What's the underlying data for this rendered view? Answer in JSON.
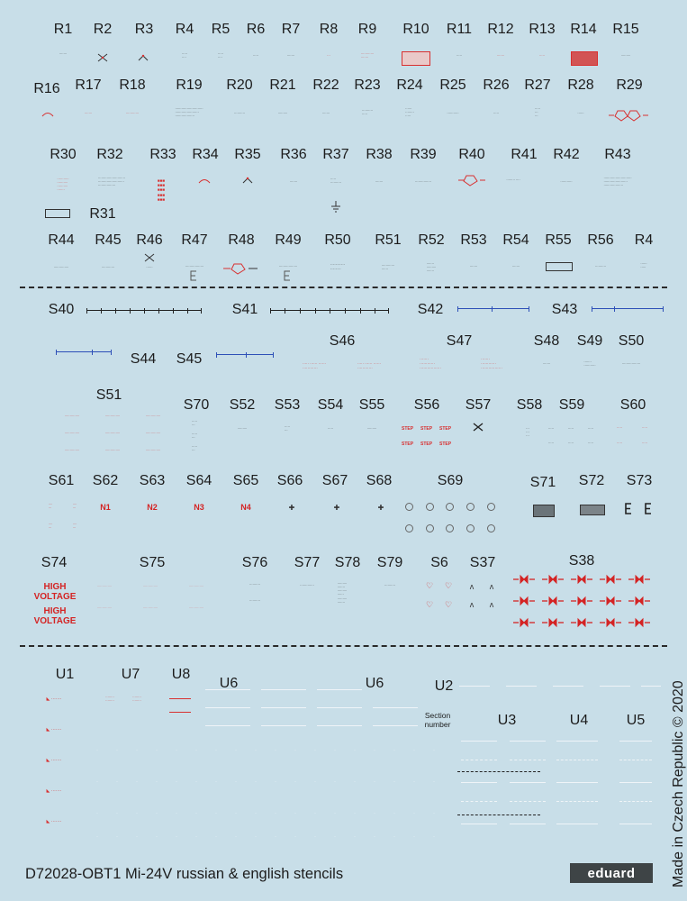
{
  "labels": {
    "R1": "R1",
    "R2": "R2",
    "R3": "R3",
    "R4": "R4",
    "R5": "R5",
    "R6": "R6",
    "R7": "R7",
    "R8": "R8",
    "R9": "R9",
    "R10": "R10",
    "R11": "R11",
    "R12": "R12",
    "R13": "R13",
    "R14": "R14",
    "R15": "R15",
    "R16": "R16",
    "R17": "R17",
    "R18": "R18",
    "R19": "R19",
    "R20": "R20",
    "R21": "R21",
    "R22": "R22",
    "R23": "R23",
    "R24": "R24",
    "R25": "R25",
    "R26": "R26",
    "R27": "R27",
    "R28": "R28",
    "R29": "R29",
    "R30": "R30",
    "R31": "R31",
    "R32": "R32",
    "R33": "R33",
    "R34": "R34",
    "R35": "R35",
    "R36": "R36",
    "R37": "R37",
    "R38": "R38",
    "R39": "R39",
    "R40": "R40",
    "R41": "R41",
    "R42": "R42",
    "R43": "R43",
    "R44": "R44",
    "R45": "R45",
    "R46": "R46",
    "R47": "R47",
    "R48": "R48",
    "R49": "R49",
    "R50": "R50",
    "R51": "R51",
    "R52": "R52",
    "R53": "R53",
    "R54": "R54",
    "R55": "R55",
    "R56": "R56",
    "R4b": "R4",
    "S40": "S40",
    "S41": "S41",
    "S42": "S42",
    "S43": "S43",
    "S44": "S44",
    "S45": "S45",
    "S46": "S46",
    "S47": "S47",
    "S48": "S48",
    "S49": "S49",
    "S50": "S50",
    "S51": "S51",
    "S70": "S70",
    "S52": "S52",
    "S53": "S53",
    "S54": "S54",
    "S55": "S55",
    "S56": "S56",
    "S57": "S57",
    "S58": "S58",
    "S59": "S59",
    "S60": "S60",
    "S61": "S61",
    "S62": "S62",
    "S63": "S63",
    "S64": "S64",
    "S65": "S65",
    "S66": "S66",
    "S67": "S67",
    "S68": "S68",
    "S69": "S69",
    "S71": "S71",
    "S72": "S72",
    "S73": "S73",
    "S74": "S74",
    "S75": "S75",
    "S76": "S76",
    "S77": "S77",
    "S78": "S78",
    "S79": "S79",
    "S6": "S6",
    "S37": "S37",
    "S38": "S38",
    "U1": "U1",
    "U7": "U7",
    "U8": "U8",
    "U6a": "U6",
    "U6b": "U6",
    "U2": "U2",
    "U3": "U3",
    "U4": "U4",
    "U5": "U5"
  },
  "stencils": {
    "high_voltage_1": "HIGH\nVOLTAGE",
    "high_voltage_2": "HIGH\nVOLTAGE",
    "n1": "N1",
    "n2": "N2",
    "n3": "N3",
    "n4": "N4",
    "section_number": "Section\nnumber",
    "step": "STEP"
  },
  "footer": {
    "title": "D72028-OBT1 Mi-24V russian & english stencils",
    "brand": "eduard",
    "made_in": "Made in Czech Republic © 2020"
  },
  "colors": {
    "background": "#c8dee8",
    "stencil_red": "#d42424",
    "stencil_blue": "#2d4fb7",
    "stencil_white": "#f4f8fa",
    "divider": "#2a2a2a"
  }
}
